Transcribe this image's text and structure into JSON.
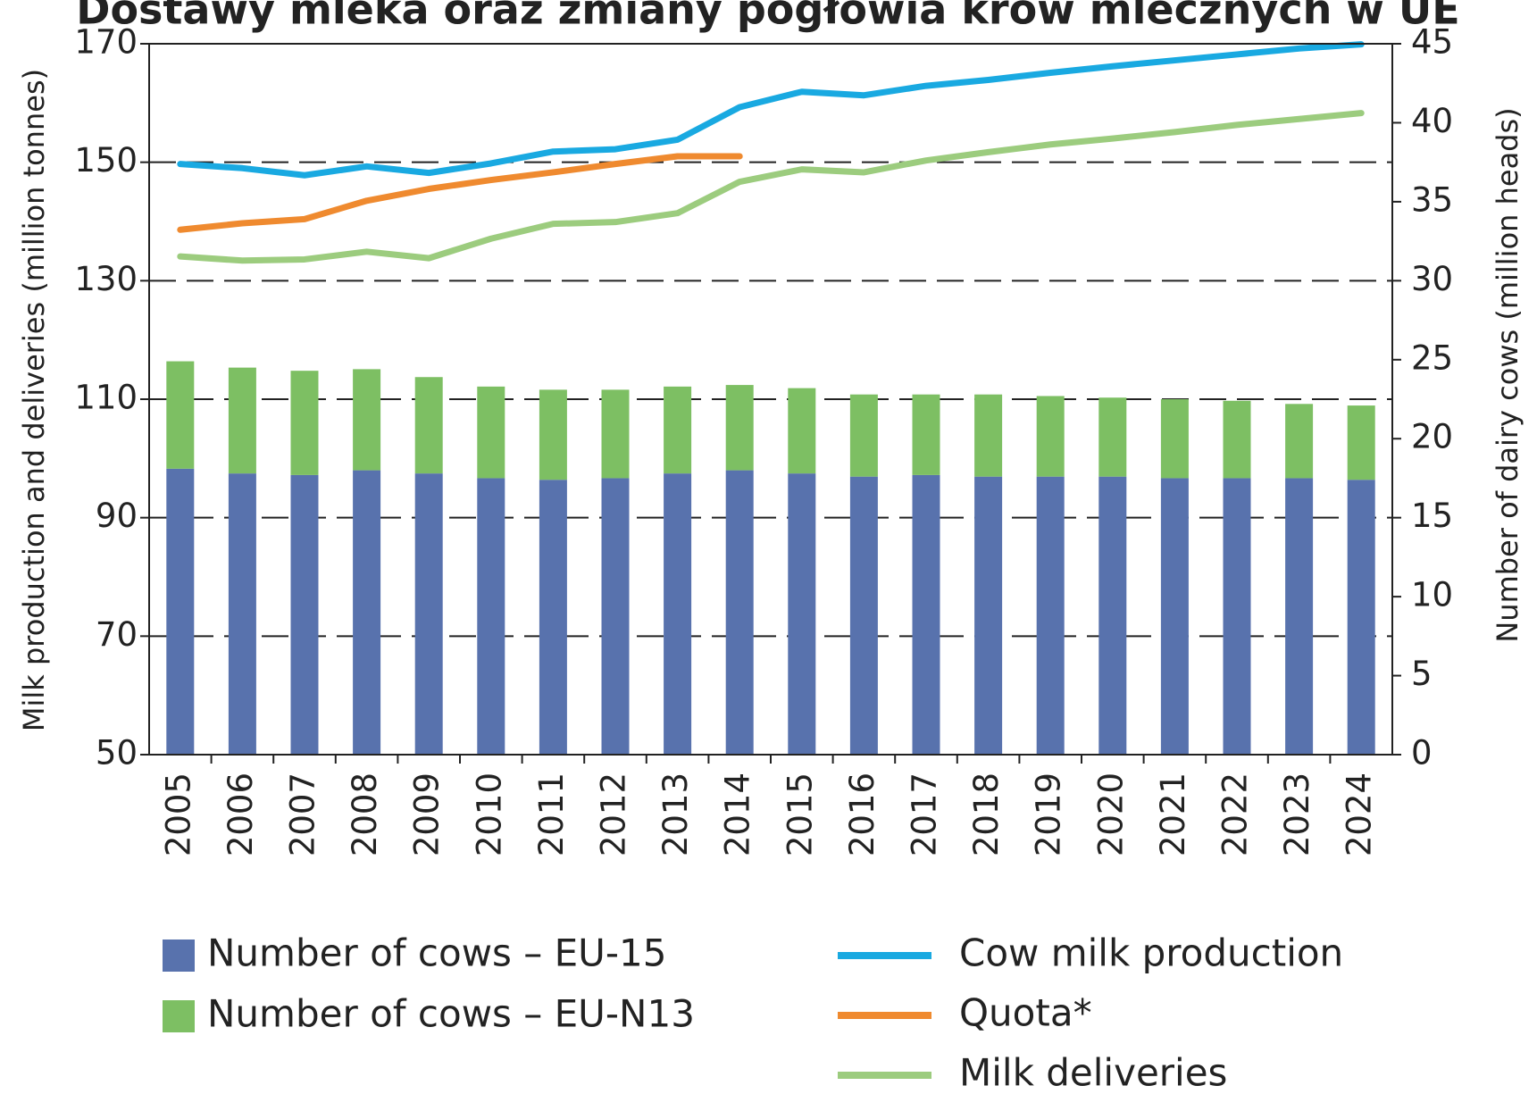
{
  "chart_data": {
    "type": "bar",
    "title": "Dostawy mleka oraz zmiany pogłowia krów mlecznych w UE",
    "ylabel": "Milk production and deliveries (million tonnes)",
    "y2label": "Number of dairy cows (million heads)",
    "categories": [
      "2005",
      "2006",
      "2007",
      "2008",
      "2009",
      "2010",
      "2011",
      "2012",
      "2013",
      "2014",
      "2015",
      "2016",
      "2017",
      "2018",
      "2019",
      "2020",
      "2021",
      "2022",
      "2023",
      "2024"
    ],
    "ylim": [
      50,
      170
    ],
    "yticks": [
      50,
      70,
      90,
      110,
      130,
      150,
      170
    ],
    "y2lim": [
      0,
      45
    ],
    "y2ticks": [
      0,
      5,
      10,
      15,
      20,
      25,
      30,
      35,
      40,
      45
    ],
    "grid": true,
    "stacked": true,
    "series": [
      {
        "name": "Number of cows – EU-15",
        "type": "bar",
        "axis": "y2",
        "color": "#5872ad",
        "values": [
          18.1,
          17.8,
          17.7,
          18.0,
          17.8,
          17.5,
          17.4,
          17.5,
          17.8,
          18.0,
          17.8,
          17.6,
          17.7,
          17.6,
          17.6,
          17.6,
          17.5,
          17.5,
          17.5,
          17.4
        ]
      },
      {
        "name": "Number of cows – EU-N13",
        "type": "bar",
        "axis": "y2",
        "color": "#7dbf63",
        "values": [
          6.8,
          6.7,
          6.6,
          6.4,
          6.1,
          5.8,
          5.7,
          5.6,
          5.5,
          5.4,
          5.4,
          5.2,
          5.1,
          5.2,
          5.1,
          5.0,
          5.0,
          4.9,
          4.7,
          4.7
        ]
      },
      {
        "name": "Cow milk production",
        "type": "line",
        "color": "#19a9e1",
        "values": [
          149.7,
          149.0,
          147.8,
          149.3,
          148.2,
          149.8,
          151.8,
          152.2,
          153.8,
          159.3,
          161.9,
          161.3,
          162.9,
          163.9,
          165.1,
          166.2,
          167.2,
          168.2,
          169.2,
          169.9
        ]
      },
      {
        "name": "Quota*",
        "type": "line",
        "color": "#ef8a2f",
        "values": [
          138.6,
          139.7,
          140.4,
          143.5,
          145.5,
          147.0,
          148.3,
          149.7,
          151.0,
          151.0,
          null,
          null,
          null,
          null,
          null,
          null,
          null,
          null,
          null,
          null
        ]
      },
      {
        "name": "Milk deliveries",
        "type": "line",
        "color": "#9ccc7e",
        "values": [
          134.1,
          133.4,
          133.6,
          134.9,
          133.8,
          137.1,
          139.6,
          139.9,
          141.4,
          146.7,
          148.8,
          148.3,
          150.3,
          151.7,
          153.0,
          154.0,
          155.1,
          156.3,
          157.3,
          158.3
        ]
      }
    ]
  }
}
